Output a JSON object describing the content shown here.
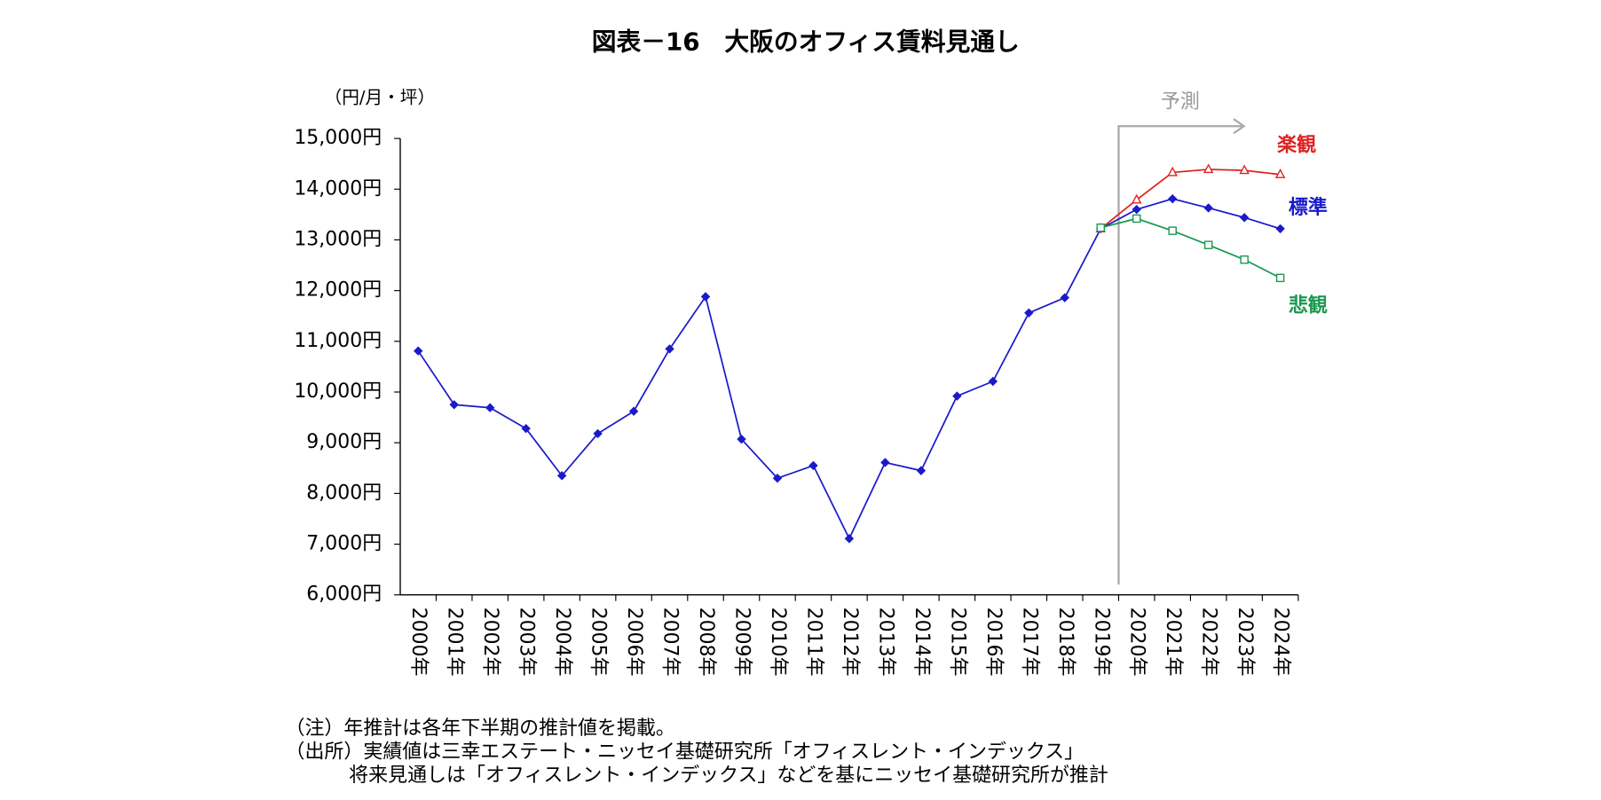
{
  "chart_data": {
    "type": "line",
    "title": "図表－16　大阪のオフィス賃料見通し",
    "y_unit": "（円/月・坪）",
    "annotation": "予測",
    "notes": [
      "（注）年推計は各年下半期の推計値を掲載。",
      "（出所）実績値は三幸エステート・ニッセイ基礎研究所「オフィスレント・インデックス」",
      "将来見通しは「オフィスレント・インデックス」などを基にニッセイ基礎研究所が推計"
    ],
    "categories": [
      "2000年",
      "2001年",
      "2002年",
      "2003年",
      "2004年",
      "2005年",
      "2006年",
      "2007年",
      "2008年",
      "2009年",
      "2010年",
      "2011年",
      "2012年",
      "2013年",
      "2014年",
      "2015年",
      "2016年",
      "2017年",
      "2018年",
      "2019年",
      "2020年",
      "2021年",
      "2022年",
      "2023年",
      "2024年"
    ],
    "series": [
      {
        "name": "標準",
        "color": "#1a1acc",
        "marker": "diamond",
        "values": [
          10810,
          9750,
          9690,
          9280,
          8350,
          9180,
          9620,
          10850,
          11880,
          9070,
          8300,
          8550,
          7110,
          8610,
          8450,
          9920,
          10210,
          11560,
          11860,
          13220,
          13600,
          13810,
          13630,
          13440,
          13220
        ]
      },
      {
        "name": "楽観",
        "color": "#dd2222",
        "marker": "triangle",
        "values": [
          null,
          null,
          null,
          null,
          null,
          null,
          null,
          null,
          null,
          null,
          null,
          null,
          null,
          null,
          null,
          null,
          null,
          null,
          null,
          13220,
          13790,
          14330,
          14390,
          14370,
          14290
        ]
      },
      {
        "name": "悲観",
        "color": "#1a9850",
        "marker": "square",
        "values": [
          null,
          null,
          null,
          null,
          null,
          null,
          null,
          null,
          null,
          null,
          null,
          null,
          null,
          null,
          null,
          null,
          null,
          null,
          null,
          13240,
          13420,
          13180,
          12900,
          12610,
          12250
        ]
      }
    ],
    "ylim": [
      6000,
      15000
    ],
    "yticks": [
      {
        "value": 6000,
        "label": "6,000円"
      },
      {
        "value": 7000,
        "label": "7,000円"
      },
      {
        "value": 8000,
        "label": "8,000円"
      },
      {
        "value": 9000,
        "label": "9,000円"
      },
      {
        "value": 10000,
        "label": "10,000円"
      },
      {
        "value": 11000,
        "label": "11,000円"
      },
      {
        "value": 12000,
        "label": "12,000円"
      },
      {
        "value": 13000,
        "label": "13,000円"
      },
      {
        "value": 14000,
        "label": "14,000円"
      },
      {
        "value": 15000,
        "label": "15,000円"
      }
    ],
    "grid": false
  }
}
